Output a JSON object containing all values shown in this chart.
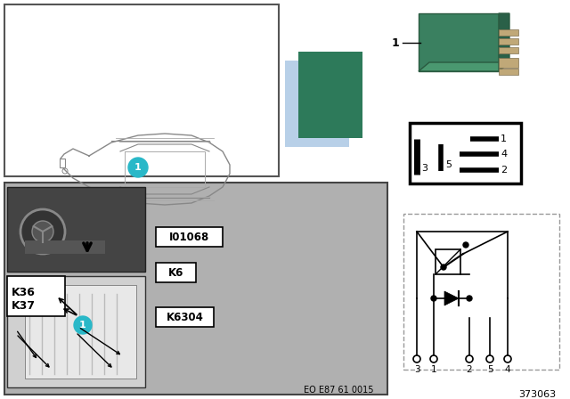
{
  "doc_number": "373063",
  "eo_number": "EO E87 61 0015",
  "background_color": "#ffffff",
  "relay_green": "#2d7a5a",
  "relay_light_blue": "#b8d0e8",
  "cyan_color": "#29b8c8",
  "photo_dark": "#888888",
  "photo_interior_dark": "#333333",
  "fuse_labels": [
    "K36",
    "K37",
    "I01068",
    "K6",
    "K6304"
  ]
}
